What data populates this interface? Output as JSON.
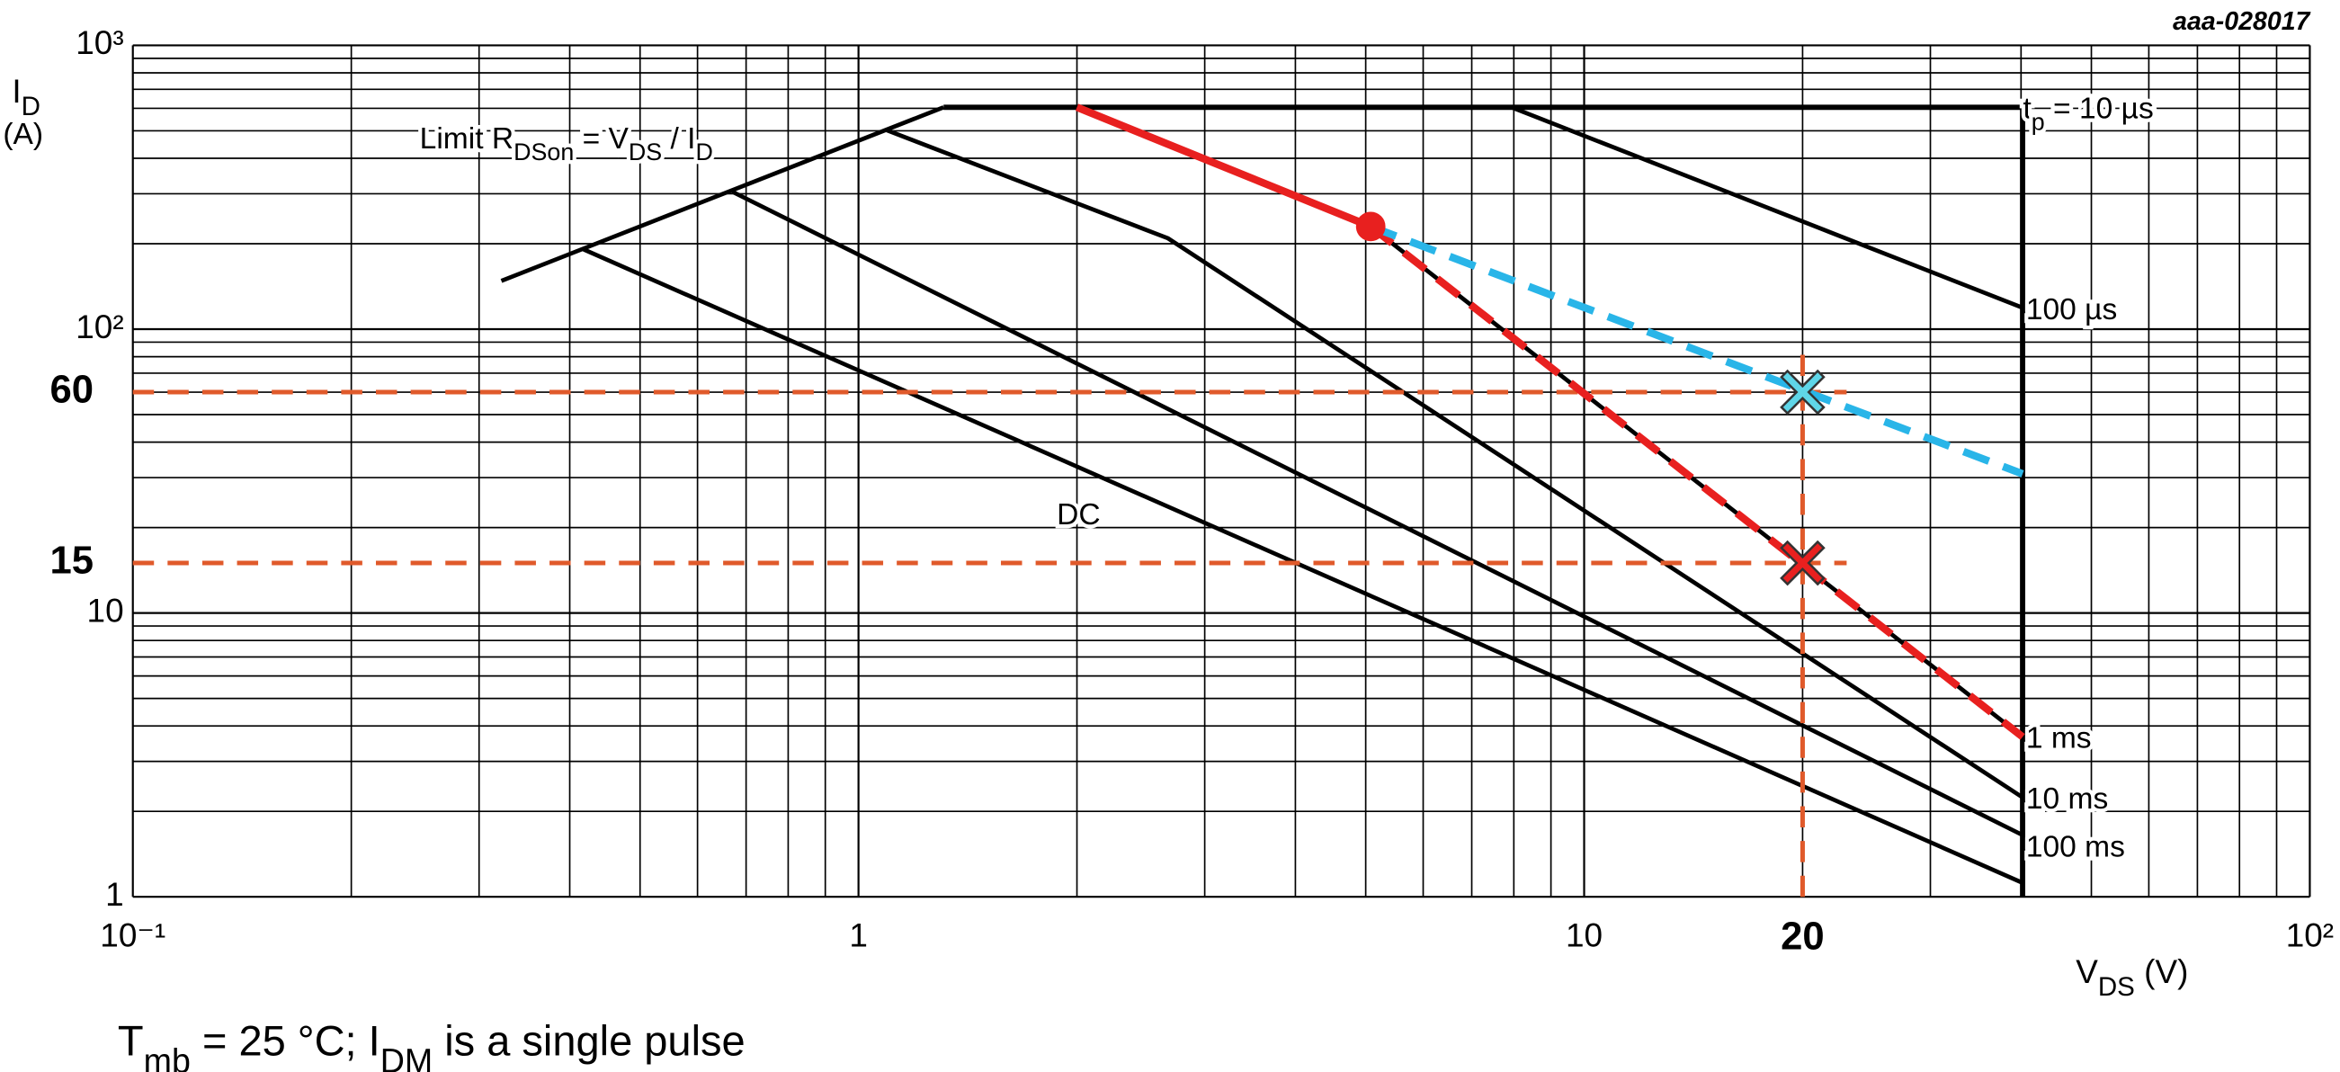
{
  "chart_data": {
    "type": "line",
    "log_x": true,
    "log_y": true,
    "grid": true,
    "doc_code": "aaa-028017",
    "xlim": [
      0.1,
      100
    ],
    "ylim": [
      1,
      1000
    ],
    "xticks": [
      {
        "value": 0.1,
        "label": "10⁻¹"
      },
      1,
      10,
      {
        "value": 100,
        "label": "10²"
      }
    ],
    "yticks": [
      1,
      10,
      {
        "value": 100,
        "label": "10²"
      },
      {
        "value": 1000,
        "label": "10³"
      }
    ],
    "y_label": {
      "text": [
        "I",
        "D"
      ],
      "unit": "(A)"
    },
    "x_label": [
      "V",
      "DS",
      " (V)"
    ],
    "footnote": [
      "T",
      "mb",
      " = 25 °C; I",
      "DM",
      " is a single pulse"
    ],
    "series": [
      {
        "label": [
          "Limit R",
          "DSon",
          " = V",
          "DS",
          " / I",
          "D"
        ],
        "color": "#000000",
        "x": [
          0.322,
          1.31
        ],
        "y": [
          148,
          605
        ]
      },
      {
        "label": [
          "t",
          "p",
          " = 10 µs"
        ],
        "color": "#000000",
        "x": [
          1.31,
          40.2,
          40.2
        ],
        "y": [
          605,
          605,
          1
        ]
      },
      {
        "label": [
          "100 µs"
        ],
        "color": "#000000",
        "x": [
          7.94,
          40.2
        ],
        "y": [
          605,
          119
        ]
      },
      {
        "label": [
          "1 ms"
        ],
        "color": "#000000",
        "x": [
          2.0,
          5.08,
          40.2
        ],
        "y": [
          605,
          230,
          3.66
        ]
      },
      {
        "label": [
          "10 ms"
        ],
        "color": "#000000",
        "x": [
          1.09,
          2.67,
          40.2
        ],
        "y": [
          504,
          209,
          2.24
        ]
      },
      {
        "label": [
          "100 ms"
        ],
        "color": "#000000",
        "x": [
          0.67,
          40.2
        ],
        "y": [
          305,
          1.65
        ]
      },
      {
        "label": [
          "DC"
        ],
        "color": "#000000",
        "x": [
          0.418,
          40.2
        ],
        "y": [
          191,
          1.12
        ]
      }
    ],
    "overlays": [
      {
        "color": "#e8201f",
        "dash": false,
        "x": [
          2.0,
          5.08
        ],
        "y": [
          605,
          230
        ]
      },
      {
        "color": "#e8201f",
        "dash": true,
        "x": [
          5.08,
          40.2
        ],
        "y": [
          230,
          3.66
        ]
      },
      {
        "color": "#29b5e8",
        "dash": true,
        "x": [
          5.08,
          40.2
        ],
        "y": [
          230,
          30.9
        ]
      }
    ],
    "markers": [
      {
        "shape": "circle",
        "color": "#e8201f",
        "x": 5.08,
        "y": 230
      },
      {
        "shape": "cross",
        "color": "#5fd6e8",
        "x": 20,
        "y": 60
      },
      {
        "shape": "cross",
        "color": "#e8201f",
        "x": 20,
        "y": 15
      }
    ],
    "ref_color": "#e05a2b",
    "hlines": [
      {
        "y": 60,
        "label": "60",
        "x_end": 23
      },
      {
        "y": 15,
        "label": "15",
        "x_end": 23
      }
    ],
    "vlines": [
      {
        "x": 20,
        "label": "20",
        "y_end": 84
      }
    ]
  }
}
